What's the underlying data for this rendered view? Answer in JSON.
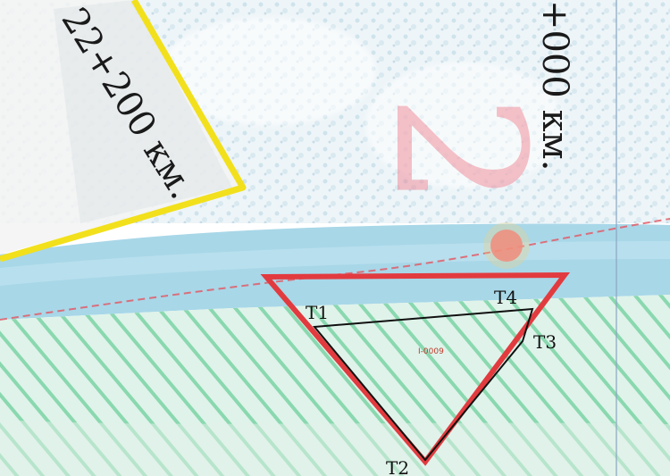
{
  "map": {
    "chainage_labels": {
      "left": "22+200 км.",
      "right": "+000 км."
    },
    "river_label": "2",
    "points": {
      "t1": "T1",
      "t2": "T2",
      "t3": "T3",
      "t4": "T4"
    },
    "parcel_id": "I-0009",
    "colors": {
      "water": "#a8d7e8",
      "land_light": "#e7f1f6",
      "boundary_yellow": "#f2e01c",
      "boundary_red": "#e23b3f",
      "hatch_green": "#57c98b",
      "parcel_outline": "#111111",
      "marker_pink": "#f07a8a"
    }
  }
}
